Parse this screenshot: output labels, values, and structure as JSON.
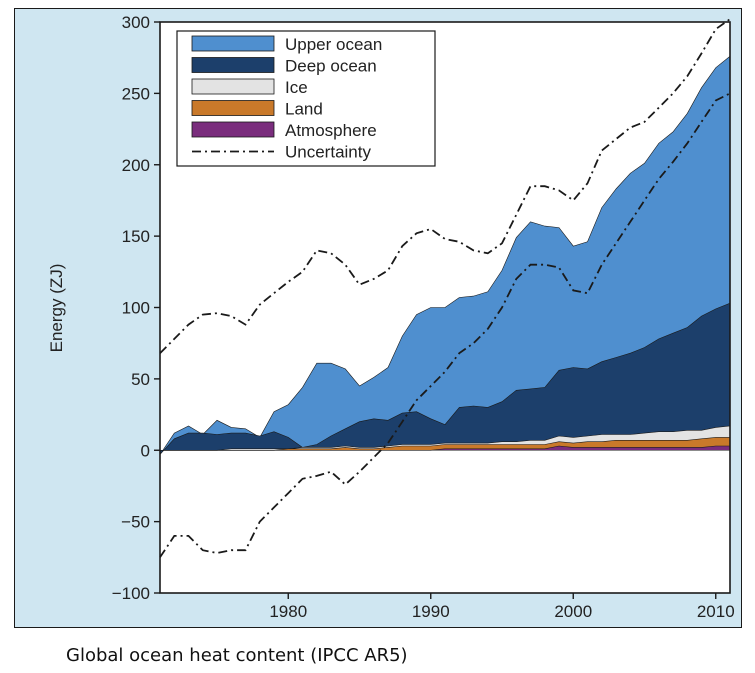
{
  "caption": "Global ocean heat content (IPCC AR5)",
  "chart_data": {
    "type": "area",
    "ylabel": "Energy (ZJ)",
    "xlabel": "",
    "ylim": [
      -100,
      300
    ],
    "xlim": [
      1971,
      2011
    ],
    "yticks": [
      -100,
      -50,
      0,
      50,
      100,
      150,
      200,
      250,
      300
    ],
    "xticks": [
      1980,
      1990,
      2000,
      2010
    ],
    "legend_position": "top-left",
    "colors": {
      "upper_ocean": "#4f8fcf",
      "deep_ocean": "#1c3f6b",
      "ice": "#e3e3e3",
      "land": "#c9792a",
      "atmosphere": "#7a2d7d",
      "background": "#cfe6f1",
      "plot_background": "#ffffff"
    },
    "legend": [
      {
        "key": "upper_ocean",
        "label": "Upper ocean",
        "kind": "fill"
      },
      {
        "key": "deep_ocean",
        "label": "Deep ocean",
        "kind": "fill"
      },
      {
        "key": "ice",
        "label": "Ice",
        "kind": "fill"
      },
      {
        "key": "land",
        "label": "Land",
        "kind": "fill"
      },
      {
        "key": "atmosphere",
        "label": "Atmosphere",
        "kind": "fill"
      },
      {
        "key": "uncertainty",
        "label": "Uncertainty",
        "kind": "dashdot"
      }
    ],
    "stacked_totals": {
      "x": [
        1971,
        1972,
        1973,
        1974,
        1975,
        1976,
        1977,
        1978,
        1979,
        1980,
        1981,
        1982,
        1983,
        1984,
        1985,
        1986,
        1987,
        1988,
        1989,
        1990,
        1991,
        1992,
        1993,
        1994,
        1995,
        1996,
        1997,
        1998,
        1999,
        2000,
        2001,
        2002,
        2003,
        2004,
        2005,
        2006,
        2007,
        2008,
        2009,
        2010,
        2011
      ],
      "atmosphere": [
        0,
        0,
        0,
        0,
        0,
        0,
        0,
        0,
        0,
        0,
        0,
        0,
        0,
        0,
        0,
        0,
        0,
        0,
        0,
        0,
        1,
        1,
        1,
        1,
        1,
        1,
        1,
        1,
        3,
        2,
        2,
        2,
        2,
        2,
        2,
        2,
        2,
        2,
        2,
        3,
        3
      ],
      "land": [
        0,
        0,
        0,
        0,
        0,
        0,
        0,
        0,
        0,
        1,
        1,
        1,
        1,
        2,
        1,
        1,
        2,
        3,
        3,
        3,
        4,
        4,
        4,
        4,
        4,
        4,
        4,
        4,
        6,
        5,
        6,
        6,
        7,
        7,
        7,
        7,
        7,
        7,
        8,
        9,
        9
      ],
      "ice": [
        0,
        0,
        0,
        0,
        0,
        1,
        1,
        1,
        1,
        1,
        2,
        2,
        2,
        3,
        2,
        2,
        3,
        4,
        4,
        4,
        5,
        5,
        5,
        5,
        6,
        6,
        7,
        7,
        10,
        9,
        10,
        11,
        11,
        11,
        12,
        13,
        13,
        14,
        14,
        16,
        17
      ],
      "deep_ocean": [
        -3,
        8,
        12,
        12,
        11,
        12,
        12,
        10,
        13,
        9,
        2,
        4,
        10,
        15,
        20,
        22,
        21,
        26,
        27,
        22,
        18,
        30,
        31,
        30,
        34,
        42,
        43,
        44,
        56,
        58,
        57,
        62,
        65,
        68,
        72,
        78,
        82,
        86,
        94,
        99,
        103
      ],
      "upper_ocean": [
        -3,
        12,
        17,
        11,
        21,
        16,
        15,
        9,
        27,
        32,
        44,
        61,
        61,
        57,
        45,
        51,
        58,
        80,
        95,
        100,
        100,
        107,
        108,
        111,
        126,
        149,
        160,
        157,
        156,
        143,
        146,
        170,
        183,
        194,
        201,
        215,
        223,
        236,
        254,
        268,
        276
      ]
    },
    "uncertainty_upper": {
      "x": [
        1971,
        1972,
        1973,
        1974,
        1975,
        1976,
        1977,
        1978,
        1979,
        1980,
        1981,
        1982,
        1983,
        1984,
        1985,
        1986,
        1987,
        1988,
        1989,
        1990,
        1991,
        1992,
        1993,
        1994,
        1995,
        1996,
        1997,
        1998,
        1999,
        2000,
        2001,
        2002,
        2003,
        2004,
        2005,
        2006,
        2007,
        2008,
        2009,
        2010,
        2011
      ],
      "y": [
        68,
        78,
        88,
        95,
        96,
        94,
        88,
        102,
        110,
        118,
        125,
        140,
        138,
        130,
        116,
        120,
        126,
        143,
        152,
        155,
        148,
        146,
        140,
        138,
        145,
        165,
        185,
        185,
        182,
        175,
        187,
        210,
        218,
        226,
        230,
        240,
        250,
        262,
        278,
        295,
        302
      ]
    },
    "uncertainty_lower": {
      "x": [
        1971,
        1972,
        1973,
        1974,
        1975,
        1976,
        1977,
        1978,
        1979,
        1980,
        1981,
        1982,
        1983,
        1984,
        1985,
        1986,
        1987,
        1988,
        1989,
        1990,
        1991,
        1992,
        1993,
        1994,
        1995,
        1996,
        1997,
        1998,
        1999,
        2000,
        2001,
        2002,
        2003,
        2004,
        2005,
        2006,
        2007,
        2008,
        2009,
        2010,
        2011
      ],
      "y": [
        -75,
        -60,
        -60,
        -70,
        -72,
        -70,
        -70,
        -50,
        -40,
        -30,
        -20,
        -18,
        -15,
        -24,
        -15,
        -5,
        5,
        20,
        35,
        45,
        55,
        68,
        75,
        85,
        100,
        120,
        130,
        130,
        128,
        112,
        110,
        130,
        145,
        160,
        175,
        190,
        202,
        215,
        230,
        245,
        250
      ]
    }
  }
}
